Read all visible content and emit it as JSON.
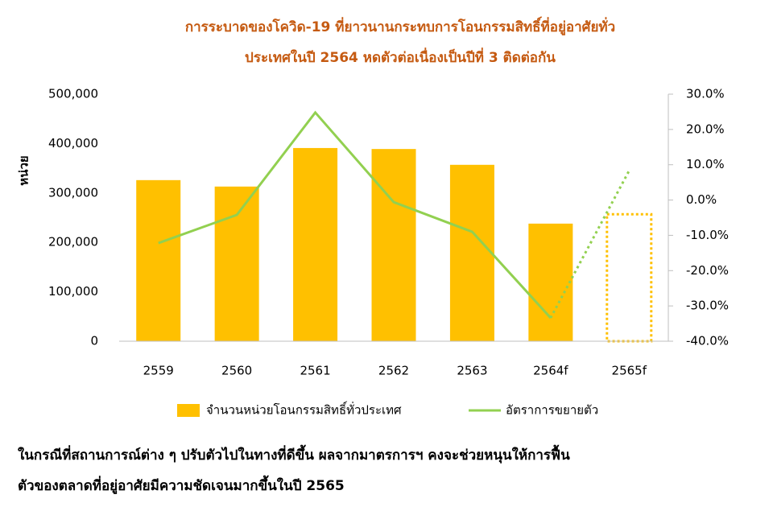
{
  "chart_data": {
    "type": "bar_line",
    "title": [
      "การระบาดของโควิด-19 ที่ยาวนานกระทบการโอนกรรมสิทธิ์ที่อยู่อาศัยทั่ว",
      "ประเทศในปี 2564 หดตัวต่อเนื่องเป็นปีที่ 3 ติดต่อกัน"
    ],
    "y_label": "หน่วย",
    "categories": [
      "2559",
      "2560",
      "2561",
      "2562",
      "2563",
      "2564f",
      "2565f"
    ],
    "forecast_from": 6,
    "series": [
      {
        "name": "จำนวนหน่วยโอนกรรมสิทธิ์ทั่วประเทศ",
        "type": "bar",
        "color": "#ffc000",
        "values": [
          326000,
          313000,
          391000,
          389000,
          357000,
          238000,
          257000
        ]
      },
      {
        "name": "อัตราการขยายตัว",
        "type": "line",
        "axis": "y2",
        "color": "#92d050",
        "values": [
          -12.2,
          -4.2,
          24.8,
          -0.6,
          -9.0,
          -33.4,
          8.3
        ]
      }
    ],
    "ylim": [
      0,
      500000
    ],
    "yticks": [
      {
        "value": 0,
        "label": "0"
      },
      {
        "value": 100000,
        "label": "100,000"
      },
      {
        "value": 200000,
        "label": "200,000"
      },
      {
        "value": 300000,
        "label": "300,000"
      },
      {
        "value": 400000,
        "label": "400,000"
      },
      {
        "value": 500000,
        "label": "500,000"
      }
    ],
    "y2lim": [
      -40,
      30
    ],
    "y2ticks": [
      {
        "value": -40,
        "label": "-40.0%"
      },
      {
        "value": -30,
        "label": "-30.0%"
      },
      {
        "value": -20,
        "label": "-20.0%"
      },
      {
        "value": -10,
        "label": "-10.0%"
      },
      {
        "value": 0,
        "label": "0.0%"
      },
      {
        "value": 10,
        "label": "10.0%"
      },
      {
        "value": 20,
        "label": "20.0%"
      },
      {
        "value": 30,
        "label": "30.0%"
      }
    ],
    "legend": "bottom"
  },
  "footnote": [
    "ในกรณีที่สถานการณ์ต่าง ๆ ปรับตัวไปในทางที่ดีขึ้น ผลจากมาตรการฯ คงจะช่วยหนุนให้การฟื้น",
    "ตัวของตลาดที่อยู่อาศัยมีความชัดเจนมากขึ้นในปี 2565"
  ]
}
